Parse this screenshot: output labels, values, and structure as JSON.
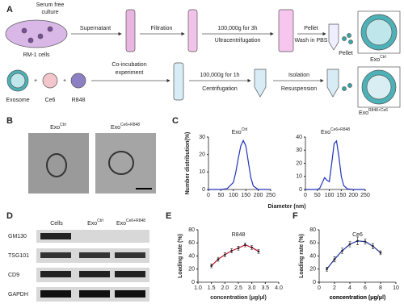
{
  "figure": {
    "panels": [
      "A",
      "B",
      "C",
      "D",
      "E",
      "F"
    ],
    "schematic": {
      "serum": [
        "Serum free",
        "culture"
      ],
      "cells": "RM-1 cells",
      "supernatant": "Supernatant",
      "filtration": "Filtration",
      "ultra_speed": "100,000g for 3h",
      "ultra": "Ultracentrifugation",
      "pellet_step": "Pellet",
      "wash": "Wash in PBS",
      "pellet": "Pellet",
      "exo_ctrl": {
        "base": "Exo",
        "sup": "Ctrl"
      },
      "exosome": "Exosome",
      "plus": "+",
      "ce6": "Ce6",
      "r848": "R848",
      "coinc": [
        "Co-incubation",
        "experiment"
      ],
      "cent_speed": "100,000g for 1h",
      "cent": "Centrifugation",
      "isolation": "Isolation",
      "resusp": "Resuspension",
      "exo_load": {
        "base": "Exo",
        "sup": "R848+Ce6"
      }
    },
    "tem": [
      {
        "base": "Exo",
        "sup": "Ctrl"
      },
      {
        "base": "Exo",
        "sup": "Ce6+R848"
      }
    ],
    "blot": {
      "columns": [
        {
          "base": "Cells",
          "sup": ""
        },
        {
          "base": "Exo",
          "sup": "Ctrl"
        },
        {
          "base": "Exo",
          "sup": "Ce6+R848"
        }
      ],
      "rows": [
        "GM130",
        "TSG101",
        "CD9",
        "GAPDH"
      ]
    }
  },
  "chart_data": [
    {
      "type": "line",
      "title": {
        "base": "Exo",
        "sup": "Ctrl"
      },
      "ylabel": "Number distribution(%)",
      "xlabel": "Diameter (nm)",
      "color": "#2233bb",
      "x": [
        0,
        25,
        50,
        75,
        100,
        110,
        120,
        130,
        140,
        150,
        160,
        170,
        180,
        200,
        225,
        250
      ],
      "values": [
        0,
        0,
        0,
        0.5,
        4,
        10,
        18,
        25,
        28,
        25,
        16,
        7,
        2,
        0,
        0,
        0
      ],
      "xlim": [
        0,
        250
      ],
      "xticks": [
        0,
        50,
        100,
        150,
        200,
        250
      ],
      "ylim": [
        0,
        30
      ],
      "yticks": [
        0,
        10,
        20,
        30
      ]
    },
    {
      "type": "line",
      "title": {
        "base": "Exo",
        "sup": "Ce6+R848"
      },
      "color": "#2233bb",
      "x": [
        0,
        25,
        50,
        60,
        70,
        80,
        90,
        100,
        110,
        120,
        130,
        140,
        150,
        160,
        175,
        200,
        250
      ],
      "values": [
        0,
        0,
        0,
        1,
        5,
        9,
        7,
        6,
        20,
        35,
        37,
        25,
        10,
        3,
        0.5,
        0,
        0
      ],
      "xlim": [
        0,
        250
      ],
      "xticks": [
        0,
        50,
        100,
        150,
        200,
        250
      ],
      "ylim": [
        0,
        40
      ],
      "yticks": [
        0,
        10,
        20,
        30,
        40
      ]
    },
    {
      "type": "scatter",
      "title": "R848",
      "ylabel": "Loading rate (%)",
      "xlabel": "concentration (μg/μl)",
      "color": "#c0102a",
      "x": [
        1.5,
        1.75,
        2.0,
        2.25,
        2.5,
        2.75,
        3.0,
        3.25
      ],
      "values": [
        25,
        35,
        42,
        48,
        52,
        57,
        53,
        47
      ],
      "errors": [
        3,
        3,
        3,
        3,
        3,
        3,
        3,
        3
      ],
      "xlim": [
        1,
        4
      ],
      "xticks": [
        {
          "value": 1,
          "label": "1.0"
        },
        1.5,
        {
          "value": 2,
          "label": "2.0"
        },
        2.5,
        {
          "value": 3,
          "label": "3.0"
        },
        3.5,
        {
          "value": 4,
          "label": "4.0"
        }
      ],
      "ylim": [
        0,
        80
      ],
      "yticks": [
        0,
        20,
        40,
        60,
        80
      ]
    },
    {
      "type": "scatter",
      "title": "Ce6",
      "ylabel": "Loading rate (%)",
      "xlabel": "concentration (μg/μl)",
      "color": "#1a2f9a",
      "x": [
        1,
        2,
        3,
        4,
        5,
        6,
        7,
        8
      ],
      "values": [
        20,
        35,
        48,
        58,
        63,
        62,
        55,
        45
      ],
      "errors": [
        3,
        4,
        4,
        4,
        6,
        4,
        4,
        3
      ],
      "xlim": [
        0,
        10
      ],
      "xticks": [
        0,
        2,
        4,
        6,
        8,
        10
      ],
      "ylim": [
        0,
        80
      ],
      "yticks": [
        0,
        20,
        40,
        60,
        80
      ]
    }
  ]
}
